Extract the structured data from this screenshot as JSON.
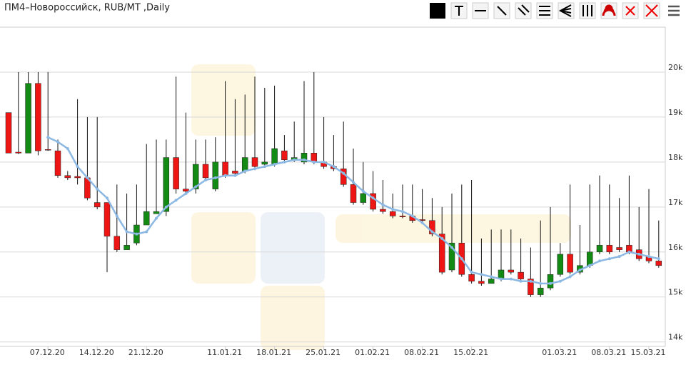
{
  "chart_data": {
    "type": "candlestick",
    "title": "ПМ4–Новороссийск, RUB/MT ,Daily",
    "categories": [
      null,
      null,
      null,
      null,
      "07.12.20",
      null,
      null,
      null,
      null,
      "14.12.20",
      null,
      null,
      null,
      null,
      "21.12.20",
      null,
      null,
      null,
      null,
      null,
      null,
      null,
      "11.01.21",
      null,
      null,
      null,
      null,
      "18.01.21",
      null,
      null,
      null,
      null,
      "25.01.21",
      null,
      null,
      null,
      null,
      "01.02.21",
      null,
      null,
      null,
      null,
      "08.02.21",
      null,
      null,
      null,
      null,
      "15.02.21",
      null,
      null,
      null,
      null,
      null,
      null,
      null,
      null,
      "01.03.21",
      null,
      null,
      null,
      null,
      "08.03.21",
      null,
      null,
      null,
      "15.03.21",
      null
    ],
    "open": [
      19100,
      18220,
      18200,
      19750,
      18280,
      18250,
      17700,
      17680,
      17650,
      17100,
      17100,
      16350,
      16050,
      16200,
      16600,
      16850,
      16900,
      18100,
      17400,
      17400,
      17950,
      17400,
      18000,
      17800,
      17800,
      18100,
      17950,
      17950,
      18250,
      18050,
      18000,
      18200,
      18000,
      17900,
      17850,
      17500,
      17100,
      17300,
      16950,
      16900,
      16800,
      16800,
      16720,
      16700,
      16400,
      15600,
      16200,
      15500,
      15350,
      15300,
      15400,
      15600,
      15550,
      15400,
      15050,
      15200,
      15500,
      15950,
      15550,
      15700,
      16000,
      16150,
      16100,
      16150,
      16050,
      15900,
      15800
    ],
    "high": [
      19100,
      20000,
      20000,
      20000,
      20000,
      18500,
      17800,
      19400,
      19000,
      19000,
      17100,
      17500,
      17300,
      17500,
      18400,
      18500,
      18500,
      19900,
      19100,
      18500,
      18500,
      18550,
      19800,
      19400,
      19500,
      19900,
      19650,
      19700,
      18600,
      18900,
      19800,
      20000,
      19000,
      18600,
      18900,
      18300,
      18000,
      17800,
      17600,
      17300,
      17500,
      17500,
      17400,
      17200,
      17000,
      17300,
      17500,
      17600,
      16300,
      16500,
      16500,
      16500,
      16300,
      16100,
      16700,
      17000,
      16200,
      17500,
      16600,
      17500,
      17700,
      17500,
      17200,
      17700,
      17000,
      17400,
      16700
    ],
    "low": [
      18200,
      18180,
      18200,
      18150,
      18250,
      17650,
      17600,
      17500,
      17150,
      16950,
      15550,
      16000,
      16050,
      16150,
      16600,
      16850,
      16800,
      17300,
      17300,
      17300,
      17600,
      17350,
      17650,
      17700,
      17750,
      17850,
      17900,
      17900,
      18000,
      18000,
      17950,
      17950,
      17850,
      17800,
      17450,
      17050,
      17050,
      16900,
      16850,
      16750,
      16750,
      16650,
      16650,
      16350,
      15500,
      15550,
      15450,
      15300,
      15250,
      15300,
      15350,
      15500,
      15350,
      15000,
      15000,
      15150,
      15450,
      15500,
      15500,
      15650,
      15950,
      15950,
      16000,
      15950,
      15800,
      15750,
      15650
    ],
    "close": [
      18200,
      18200,
      19750,
      18250,
      18270,
      17700,
      17650,
      17650,
      17200,
      17000,
      16350,
      16050,
      16150,
      16600,
      16900,
      16900,
      18100,
      17400,
      17350,
      17950,
      17650,
      18000,
      17700,
      17750,
      18100,
      17900,
      18000,
      18300,
      18050,
      18100,
      18200,
      18000,
      17900,
      17850,
      17500,
      17100,
      17300,
      16950,
      16900,
      16800,
      16780,
      16700,
      16700,
      16400,
      15550,
      16200,
      15500,
      15350,
      15300,
      15400,
      15600,
      15550,
      15400,
      15050,
      15200,
      15500,
      15950,
      15550,
      15700,
      16000,
      16150,
      16000,
      16050,
      16000,
      15850,
      15800,
      15700
    ],
    "up_color": "#138a13",
    "down_color": "#ee1515",
    "wick_color": "#111111",
    "line": {
      "color": "#8cb8e4",
      "values": [
        null,
        null,
        null,
        null,
        18550,
        18450,
        18300,
        17900,
        17650,
        17400,
        17200,
        16800,
        16450,
        16400,
        16450,
        16750,
        17000,
        17150,
        17300,
        17450,
        17600,
        17650,
        17700,
        17700,
        17800,
        17850,
        17900,
        17950,
        18000,
        18050,
        18050,
        18000,
        18000,
        17900,
        17750,
        17550,
        17350,
        17200,
        17050,
        16950,
        16900,
        16800,
        16650,
        16450,
        16300,
        16100,
        15850,
        15550,
        15500,
        15450,
        15400,
        15400,
        15350,
        15350,
        15300,
        15300,
        15350,
        15450,
        15600,
        15700,
        15800,
        15850,
        15900,
        16000,
        15950,
        15900,
        15850
      ]
    },
    "ylim": [
      13900,
      21000
    ],
    "yticks": [
      {
        "value": 14000,
        "label": "14k"
      },
      {
        "value": 15000,
        "label": "15k"
      },
      {
        "value": 16000,
        "label": "16k"
      },
      {
        "value": 17000,
        "label": "17k"
      },
      {
        "value": 18000,
        "label": "18k"
      },
      {
        "value": 19000,
        "label": "19k"
      },
      {
        "value": 20000,
        "label": "20k"
      }
    ],
    "grid": true
  }
}
